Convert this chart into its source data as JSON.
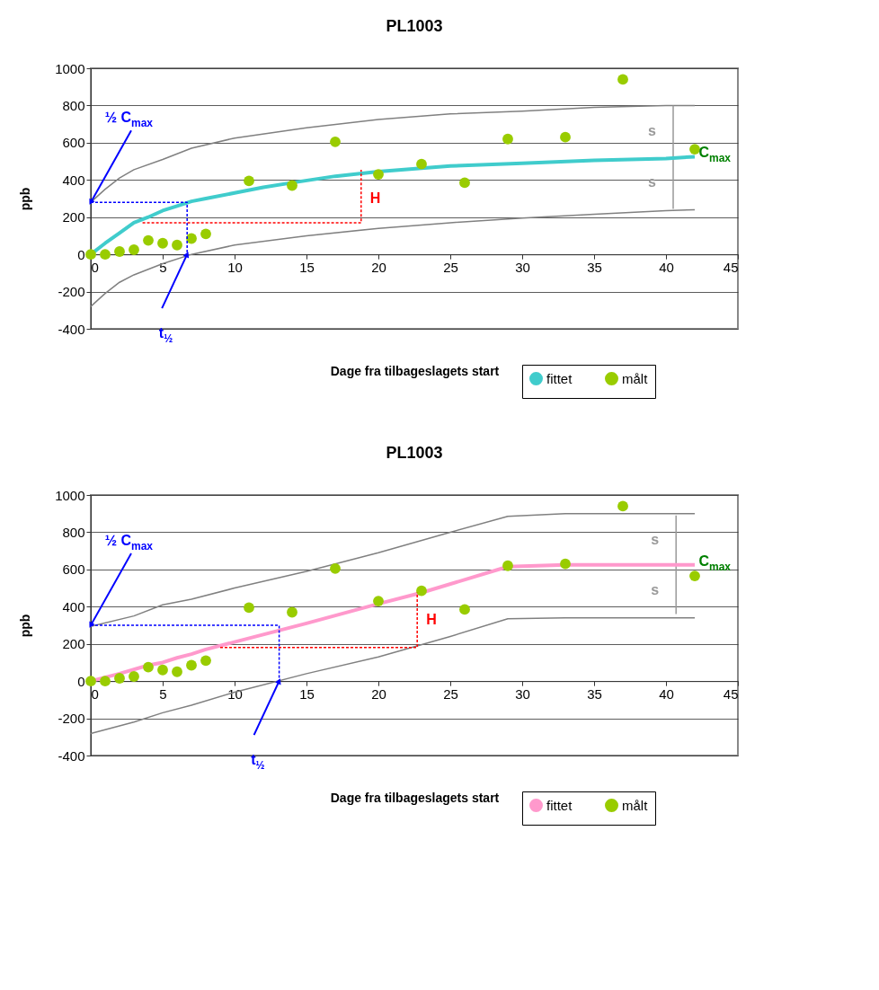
{
  "chart_data": [
    {
      "type": "line",
      "title": "PL1003",
      "xlabel": "Dage fra tilbageslagets start",
      "ylabel": "ppb",
      "xlim": [
        0,
        45
      ],
      "ylim": [
        -400,
        1000
      ],
      "xticks": [
        0,
        5,
        10,
        15,
        20,
        25,
        30,
        35,
        40,
        45
      ],
      "yticks": [
        -400,
        -200,
        0,
        200,
        400,
        600,
        800,
        {
          "value": 1000,
          "label": "1000"
        }
      ],
      "grid": "y",
      "legend": "bottom right",
      "series": [
        {
          "color": "#808080",
          "x": [
            0,
            1,
            2,
            3,
            5,
            7,
            10,
            15,
            20,
            25,
            30,
            35,
            40,
            42
          ],
          "values": [
            280,
            350,
            410,
            455,
            510,
            570,
            625,
            680,
            725,
            755,
            770,
            790,
            800,
            800
          ]
        },
        {
          "color": "#808080",
          "x": [
            0,
            1,
            2,
            3,
            5,
            7,
            10,
            15,
            20,
            25,
            30,
            35,
            40,
            42
          ],
          "values": [
            -280,
            -210,
            -150,
            -110,
            -50,
            0,
            50,
            100,
            140,
            170,
            195,
            215,
            235,
            240
          ]
        },
        {
          "color": "#0000ff",
          "line_style": "dashed",
          "x": [
            0,
            6.7,
            6.7
          ],
          "values": [
            280,
            280,
            0
          ]
        },
        {
          "color": "#ff0000",
          "line_style": "dashed",
          "x": [
            3.6,
            18.8,
            18.8
          ],
          "values": [
            170,
            170,
            455
          ]
        },
        {
          "color": "#999999",
          "x": [
            40.5,
            40.5
          ],
          "values": [
            800,
            245
          ]
        },
        {
          "name": "fittet",
          "color": "#40cccc",
          "x": [
            0,
            1,
            2,
            3,
            4,
            5,
            6,
            7,
            8,
            10,
            12,
            14,
            17,
            20,
            25,
            30,
            35,
            40,
            42
          ],
          "values": [
            0,
            60,
            115,
            170,
            200,
            235,
            260,
            285,
            300,
            330,
            360,
            385,
            420,
            445,
            475,
            490,
            505,
            515,
            525
          ]
        },
        {
          "name": "målt",
          "type": "scatter",
          "marker": "circle",
          "color": "#99cc00",
          "x": [
            0,
            1,
            2,
            3,
            4,
            5,
            6,
            7,
            8,
            11,
            14,
            17,
            20,
            23,
            26,
            29,
            33,
            37,
            42
          ],
          "values": [
            0,
            0,
            15,
            25,
            75,
            60,
            50,
            85,
            110,
            395,
            370,
            605,
            430,
            485,
            385,
            620,
            630,
            940,
            565
          ]
        }
      ],
      "annotations": [
        {
          "text": "½ C$_{max}$",
          "x": 0,
          "y": 280
        },
        {
          "text": "t$_{½}$",
          "x": 6.7,
          "y": 0
        },
        {
          "text": "H",
          "x": 18.8,
          "y": 300
        },
        {
          "text": "s",
          "x": 40.5,
          "y": 660
        },
        {
          "text": "s",
          "x": 40.5,
          "y": 385
        },
        {
          "text": "C$_{max}$",
          "x": 42,
          "y": 525
        }
      ]
    },
    {
      "type": "line",
      "title": "PL1003",
      "xlabel": "Dage fra tilbageslagets start",
      "ylabel": "ppb",
      "xlim": [
        0,
        45
      ],
      "ylim": [
        -400,
        1000
      ],
      "xticks": [
        0,
        5,
        10,
        15,
        20,
        25,
        30,
        35,
        40,
        45
      ],
      "yticks": [
        -400,
        -200,
        0,
        200,
        400,
        600,
        800,
        {
          "value": 1000,
          "label": "1000"
        }
      ],
      "grid": "y",
      "legend": "bottom right",
      "series": [
        {
          "color": "#808080",
          "x": [
            0,
            3,
            5,
            7,
            10,
            15,
            20,
            25,
            29,
            33,
            42
          ],
          "values": [
            294,
            350,
            410,
            440,
            500,
            590,
            690,
            800,
            885,
            900,
            900
          ]
        },
        {
          "color": "#808080",
          "x": [
            0,
            3,
            5,
            7,
            10,
            15,
            20,
            25,
            29,
            33,
            42
          ],
          "values": [
            -282,
            -220,
            -170,
            -130,
            -60,
            40,
            130,
            240,
            335,
            340,
            340
          ]
        },
        {
          "color": "#0000ff",
          "line_style": "dashed",
          "x": [
            0,
            13.1,
            13.1
          ],
          "values": [
            300,
            300,
            0
          ]
        },
        {
          "color": "#ff0000",
          "line_style": "dashed",
          "x": [
            9,
            22.7,
            22.7
          ],
          "values": [
            180,
            180,
            475
          ]
        },
        {
          "color": "#999999",
          "x": [
            40.7,
            40.7
          ],
          "values": [
            890,
            360
          ]
        },
        {
          "name": "fittet",
          "color": "#ff99cc",
          "x": [
            0,
            2,
            4,
            5,
            6,
            7,
            8,
            10,
            15,
            20,
            23,
            29,
            33,
            42
          ],
          "values": [
            0,
            40,
            85,
            100,
            125,
            145,
            170,
            210,
            310,
            415,
            475,
            615,
            625,
            625
          ]
        },
        {
          "name": "målt",
          "type": "scatter",
          "marker": "circle",
          "color": "#99cc00",
          "x": [
            0,
            1,
            2,
            3,
            4,
            5,
            6,
            7,
            8,
            11,
            14,
            17,
            20,
            23,
            26,
            29,
            33,
            37,
            42
          ],
          "values": [
            0,
            0,
            15,
            25,
            75,
            60,
            50,
            85,
            110,
            395,
            370,
            605,
            430,
            485,
            385,
            620,
            630,
            940,
            565
          ]
        }
      ],
      "annotations": [
        {
          "text": "½ C$_{max}$",
          "x": 0,
          "y": 300
        },
        {
          "text": "t$_{½}$",
          "x": 13.1,
          "y": 0
        },
        {
          "text": "H",
          "x": 22.7,
          "y": 330
        },
        {
          "text": "s",
          "x": 40.7,
          "y": 760
        },
        {
          "text": "s",
          "x": 40.7,
          "y": 490
        },
        {
          "text": "C$_{max}$",
          "x": 42,
          "y": 625
        }
      ]
    }
  ]
}
